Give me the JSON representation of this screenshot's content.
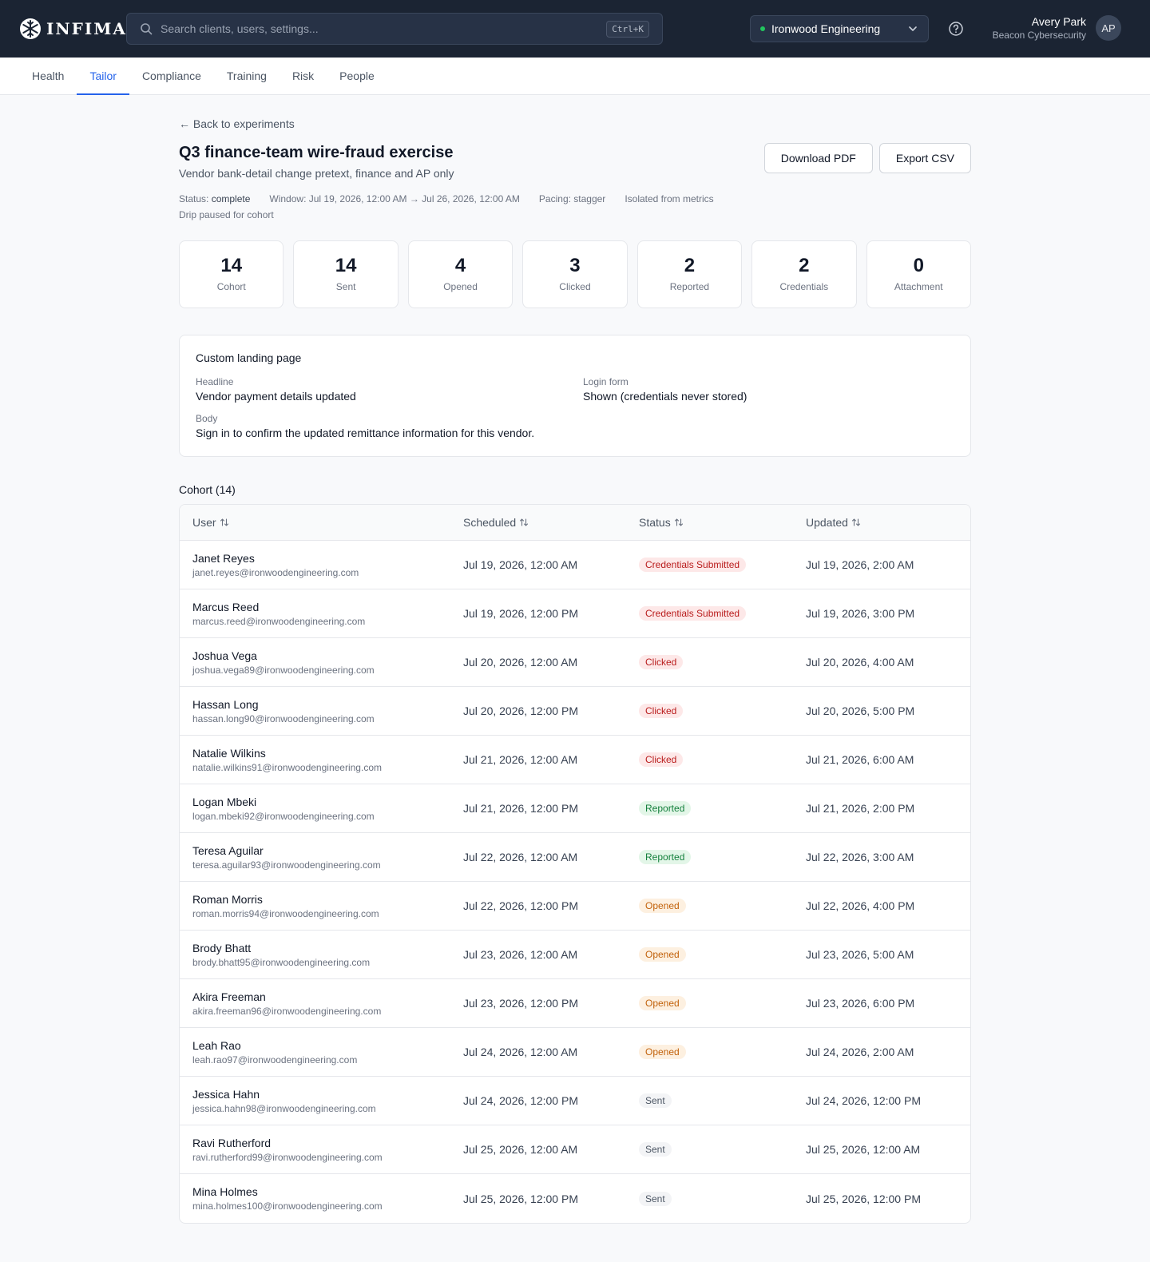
{
  "header": {
    "logo_text": "INFIMA",
    "search_placeholder": "Search clients, users, settings...",
    "search_shortcut": "Ctrl+K",
    "org_name": "Ironwood Engineering",
    "user_name": "Avery Park",
    "user_org": "Beacon Cybersecurity",
    "avatar_initials": "AP"
  },
  "tabs": [
    "Health",
    "Tailor",
    "Compliance",
    "Training",
    "Risk",
    "People"
  ],
  "active_tab": "Tailor",
  "page": {
    "back_label": "← Back to experiments",
    "title": "Q3 finance-team wire-fraud exercise",
    "subtitle": "Vendor bank-detail change pretext, finance and AP only",
    "download_pdf": "Download PDF",
    "export_csv": "Export CSV",
    "meta": {
      "status_label": "Status: ",
      "status_value": "complete",
      "window": "Window: Jul 19, 2026, 12:00 AM → Jul 26, 2026, 12:00 AM",
      "pacing": "Pacing: stagger",
      "isolated": "Isolated from metrics",
      "drip": "Drip paused for cohort"
    }
  },
  "stats": [
    {
      "value": "14",
      "label": "Cohort"
    },
    {
      "value": "14",
      "label": "Sent"
    },
    {
      "value": "4",
      "label": "Opened"
    },
    {
      "value": "3",
      "label": "Clicked"
    },
    {
      "value": "2",
      "label": "Reported"
    },
    {
      "value": "2",
      "label": "Credentials"
    },
    {
      "value": "0",
      "label": "Attachment"
    }
  ],
  "landing": {
    "title": "Custom landing page",
    "headline_label": "Headline",
    "headline_value": "Vendor payment details updated",
    "login_label": "Login form",
    "login_value": "Shown (credentials never stored)",
    "body_label": "Body",
    "body_value": "Sign in to confirm the updated remittance information for this vendor."
  },
  "cohort": {
    "title": "Cohort (14)",
    "columns": [
      "User",
      "Scheduled",
      "Status",
      "Updated"
    ],
    "rows": [
      {
        "name": "Janet Reyes",
        "email": "janet.reyes@ironwoodengineering.com",
        "scheduled": "Jul 19, 2026, 12:00 AM",
        "status": "Credentials Submitted",
        "status_kind": "credentials",
        "updated": "Jul 19, 2026, 2:00 AM"
      },
      {
        "name": "Marcus Reed",
        "email": "marcus.reed@ironwoodengineering.com",
        "scheduled": "Jul 19, 2026, 12:00 PM",
        "status": "Credentials Submitted",
        "status_kind": "credentials",
        "updated": "Jul 19, 2026, 3:00 PM"
      },
      {
        "name": "Joshua Vega",
        "email": "joshua.vega89@ironwoodengineering.com",
        "scheduled": "Jul 20, 2026, 12:00 AM",
        "status": "Clicked",
        "status_kind": "clicked",
        "updated": "Jul 20, 2026, 4:00 AM"
      },
      {
        "name": "Hassan Long",
        "email": "hassan.long90@ironwoodengineering.com",
        "scheduled": "Jul 20, 2026, 12:00 PM",
        "status": "Clicked",
        "status_kind": "clicked",
        "updated": "Jul 20, 2026, 5:00 PM"
      },
      {
        "name": "Natalie Wilkins",
        "email": "natalie.wilkins91@ironwoodengineering.com",
        "scheduled": "Jul 21, 2026, 12:00 AM",
        "status": "Clicked",
        "status_kind": "clicked",
        "updated": "Jul 21, 2026, 6:00 AM"
      },
      {
        "name": "Logan Mbeki",
        "email": "logan.mbeki92@ironwoodengineering.com",
        "scheduled": "Jul 21, 2026, 12:00 PM",
        "status": "Reported",
        "status_kind": "reported",
        "updated": "Jul 21, 2026, 2:00 PM"
      },
      {
        "name": "Teresa Aguilar",
        "email": "teresa.aguilar93@ironwoodengineering.com",
        "scheduled": "Jul 22, 2026, 12:00 AM",
        "status": "Reported",
        "status_kind": "reported",
        "updated": "Jul 22, 2026, 3:00 AM"
      },
      {
        "name": "Roman Morris",
        "email": "roman.morris94@ironwoodengineering.com",
        "scheduled": "Jul 22, 2026, 12:00 PM",
        "status": "Opened",
        "status_kind": "opened",
        "updated": "Jul 22, 2026, 4:00 PM"
      },
      {
        "name": "Brody Bhatt",
        "email": "brody.bhatt95@ironwoodengineering.com",
        "scheduled": "Jul 23, 2026, 12:00 AM",
        "status": "Opened",
        "status_kind": "opened",
        "updated": "Jul 23, 2026, 5:00 AM"
      },
      {
        "name": "Akira Freeman",
        "email": "akira.freeman96@ironwoodengineering.com",
        "scheduled": "Jul 23, 2026, 12:00 PM",
        "status": "Opened",
        "status_kind": "opened",
        "updated": "Jul 23, 2026, 6:00 PM"
      },
      {
        "name": "Leah Rao",
        "email": "leah.rao97@ironwoodengineering.com",
        "scheduled": "Jul 24, 2026, 12:00 AM",
        "status": "Opened",
        "status_kind": "opened",
        "updated": "Jul 24, 2026, 2:00 AM"
      },
      {
        "name": "Jessica Hahn",
        "email": "jessica.hahn98@ironwoodengineering.com",
        "scheduled": "Jul 24, 2026, 12:00 PM",
        "status": "Sent",
        "status_kind": "sent",
        "updated": "Jul 24, 2026, 12:00 PM"
      },
      {
        "name": "Ravi Rutherford",
        "email": "ravi.rutherford99@ironwoodengineering.com",
        "scheduled": "Jul 25, 2026, 12:00 AM",
        "status": "Sent",
        "status_kind": "sent",
        "updated": "Jul 25, 2026, 12:00 AM"
      },
      {
        "name": "Mina Holmes",
        "email": "mina.holmes100@ironwoodengineering.com",
        "scheduled": "Jul 25, 2026, 12:00 PM",
        "status": "Sent",
        "status_kind": "sent",
        "updated": "Jul 25, 2026, 12:00 PM"
      }
    ]
  },
  "colors": {
    "topbar": "#1b2433",
    "accent": "#2563eb",
    "danger": "#b91c1c",
    "success": "#15803d",
    "warning": "#c2620c"
  },
  "icons": [
    "snowflake-logo-icon",
    "search-icon",
    "chevron-down-icon",
    "help-icon",
    "sort-icon"
  ]
}
